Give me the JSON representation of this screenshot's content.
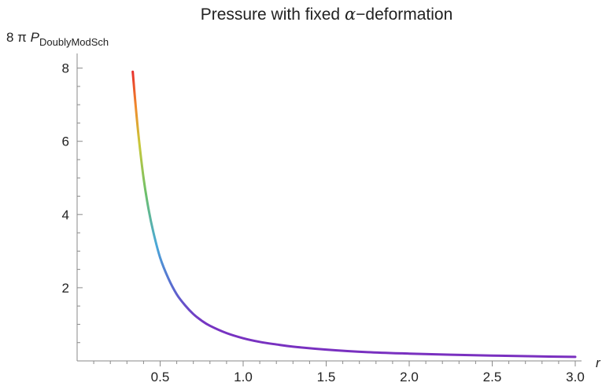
{
  "chart_data": {
    "type": "line",
    "title_prefix": "Pressure with fixed ",
    "title_symbol": "α",
    "title_suffix": "−deformation",
    "ylabel_prefix": "8 π ",
    "ylabel_main": "P",
    "ylabel_sub": "DoublyModSch",
    "xlabel": "r",
    "xlim": [
      0,
      3.0
    ],
    "ylim": [
      0,
      8.4
    ],
    "x_ticks": [
      0.5,
      1.0,
      1.5,
      2.0,
      2.5,
      3.0
    ],
    "x_tick_labels": [
      "0.5",
      "1.0",
      "1.5",
      "2.0",
      "2.5",
      "3.0"
    ],
    "y_ticks": [
      2,
      4,
      6,
      8
    ],
    "y_tick_labels": [
      "2",
      "4",
      "6",
      "8"
    ],
    "grid": false,
    "legend": "none",
    "series": [
      {
        "x": [
          0.335,
          0.35,
          0.37,
          0.4,
          0.43,
          0.46,
          0.5,
          0.55,
          0.6,
          0.65,
          0.7,
          0.75,
          0.8,
          0.9,
          1.0,
          1.1,
          1.2,
          1.3,
          1.5,
          1.75,
          2.0,
          2.25,
          2.5,
          2.75,
          3.0
        ],
        "values": [
          7.9,
          7.1,
          6.15,
          5.0,
          4.15,
          3.5,
          2.82,
          2.25,
          1.82,
          1.52,
          1.28,
          1.1,
          0.96,
          0.76,
          0.62,
          0.52,
          0.45,
          0.39,
          0.31,
          0.24,
          0.2,
          0.17,
          0.145,
          0.125,
          0.11
        ]
      }
    ],
    "colors": [
      "#e8302c",
      "#f08a2c",
      "#c9c83a",
      "#6dc06a",
      "#4aa8d8",
      "#5a68cf",
      "#7634c2",
      "#7a2fbf"
    ]
  }
}
